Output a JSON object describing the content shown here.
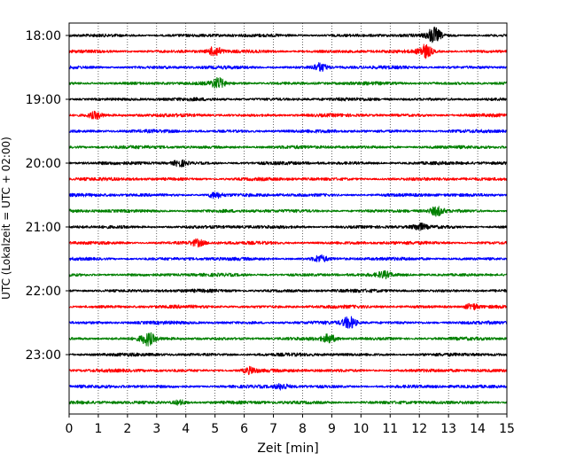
{
  "chart_data": {
    "type": "line",
    "title": "",
    "xlabel": "Zeit  [min]",
    "ylabel": "UTC (Lokalzeit = UTC + 02:00)",
    "xlim": [
      0,
      15
    ],
    "x_ticks": [
      0,
      1,
      2,
      3,
      4,
      5,
      6,
      7,
      8,
      9,
      10,
      11,
      12,
      13,
      14,
      15
    ],
    "y_ticks": [
      "18:00",
      "19:00",
      "20:00",
      "21:00",
      "22:00",
      "23:00"
    ],
    "trace_interval_min": 15,
    "start_time": "18:00",
    "grid": "vertical dotted",
    "color_cycle": [
      "#000000",
      "#ff0000",
      "#0000ff",
      "#008000"
    ],
    "series": [
      {
        "start": "18:00",
        "bursts": [
          {
            "t": 12.5,
            "amp": 2.6
          }
        ]
      },
      {
        "start": "18:15",
        "bursts": [
          {
            "t": 5.0,
            "amp": 1.6
          },
          {
            "t": 12.2,
            "amp": 2.2
          }
        ]
      },
      {
        "start": "18:30",
        "bursts": [
          {
            "t": 8.6,
            "amp": 1.3
          }
        ]
      },
      {
        "start": "18:45",
        "bursts": [
          {
            "t": 5.1,
            "amp": 1.6
          }
        ]
      },
      {
        "start": "19:00",
        "bursts": []
      },
      {
        "start": "19:15",
        "bursts": [
          {
            "t": 0.9,
            "amp": 1.1
          }
        ]
      },
      {
        "start": "19:30",
        "bursts": []
      },
      {
        "start": "19:45",
        "bursts": []
      },
      {
        "start": "20:00",
        "bursts": [
          {
            "t": 3.8,
            "amp": 1.0
          }
        ]
      },
      {
        "start": "20:15",
        "bursts": []
      },
      {
        "start": "20:30",
        "bursts": [
          {
            "t": 5.0,
            "amp": 1.0
          }
        ]
      },
      {
        "start": "20:45",
        "bursts": [
          {
            "t": 12.6,
            "amp": 1.4
          }
        ]
      },
      {
        "start": "21:00",
        "bursts": [
          {
            "t": 12.0,
            "amp": 1.0
          }
        ]
      },
      {
        "start": "21:15",
        "bursts": [
          {
            "t": 4.4,
            "amp": 1.0
          }
        ]
      },
      {
        "start": "21:30",
        "bursts": [
          {
            "t": 8.6,
            "amp": 1.1
          }
        ]
      },
      {
        "start": "21:45",
        "bursts": [
          {
            "t": 10.8,
            "amp": 0.9
          }
        ]
      },
      {
        "start": "22:00",
        "bursts": []
      },
      {
        "start": "22:15",
        "bursts": [
          {
            "t": 13.8,
            "amp": 1.0
          }
        ]
      },
      {
        "start": "22:30",
        "bursts": [
          {
            "t": 9.6,
            "amp": 2.0
          }
        ]
      },
      {
        "start": "22:45",
        "bursts": [
          {
            "t": 2.7,
            "amp": 2.0
          },
          {
            "t": 8.9,
            "amp": 1.3
          }
        ]
      },
      {
        "start": "23:00",
        "bursts": []
      },
      {
        "start": "23:15",
        "bursts": [
          {
            "t": 6.2,
            "amp": 1.0
          }
        ]
      },
      {
        "start": "23:30",
        "bursts": [
          {
            "t": 7.3,
            "amp": 0.9
          }
        ]
      },
      {
        "start": "23:45",
        "bursts": [
          {
            "t": 3.8,
            "amp": 0.8
          }
        ]
      }
    ]
  }
}
